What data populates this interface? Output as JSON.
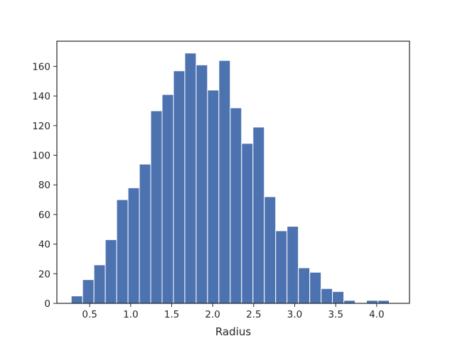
{
  "chart_data": {
    "type": "histogram",
    "title": "",
    "xlabel": "Radius",
    "ylabel": "",
    "xlim": [
      0.1,
      4.4
    ],
    "ylim": [
      0,
      177
    ],
    "bar_color": "#4c72b0",
    "edge_color": "#ffffff",
    "grid": false,
    "legend": "none",
    "bin_width": 0.1385,
    "bin_edges_start": 0.275,
    "bins": [
      {
        "x0": 0.275,
        "x1": 0.4135,
        "count": 5
      },
      {
        "x0": 0.4135,
        "x1": 0.552,
        "count": 16
      },
      {
        "x0": 0.552,
        "x1": 0.6905,
        "count": 26
      },
      {
        "x0": 0.6905,
        "x1": 0.829,
        "count": 43
      },
      {
        "x0": 0.829,
        "x1": 0.9675,
        "count": 70
      },
      {
        "x0": 0.9675,
        "x1": 1.106,
        "count": 78
      },
      {
        "x0": 1.106,
        "x1": 1.2445,
        "count": 94
      },
      {
        "x0": 1.2445,
        "x1": 1.383,
        "count": 130
      },
      {
        "x0": 1.383,
        "x1": 1.5215,
        "count": 141
      },
      {
        "x0": 1.5215,
        "x1": 1.66,
        "count": 157
      },
      {
        "x0": 1.66,
        "x1": 1.7985,
        "count": 169
      },
      {
        "x0": 1.7985,
        "x1": 1.937,
        "count": 161
      },
      {
        "x0": 1.937,
        "x1": 2.0755,
        "count": 144
      },
      {
        "x0": 2.0755,
        "x1": 2.214,
        "count": 164
      },
      {
        "x0": 2.214,
        "x1": 2.3525,
        "count": 132
      },
      {
        "x0": 2.3525,
        "x1": 2.491,
        "count": 108
      },
      {
        "x0": 2.491,
        "x1": 2.6295,
        "count": 119
      },
      {
        "x0": 2.6295,
        "x1": 2.768,
        "count": 72
      },
      {
        "x0": 2.768,
        "x1": 2.9065,
        "count": 49
      },
      {
        "x0": 2.9065,
        "x1": 3.045,
        "count": 52
      },
      {
        "x0": 3.045,
        "x1": 3.1835,
        "count": 24
      },
      {
        "x0": 3.1835,
        "x1": 3.322,
        "count": 21
      },
      {
        "x0": 3.322,
        "x1": 3.4605,
        "count": 10
      },
      {
        "x0": 3.4605,
        "x1": 3.599,
        "count": 8
      },
      {
        "x0": 3.599,
        "x1": 3.7375,
        "count": 2
      },
      {
        "x0": 3.7375,
        "x1": 3.876,
        "count": 0
      },
      {
        "x0": 3.876,
        "x1": 4.0145,
        "count": 2
      },
      {
        "x0": 4.0145,
        "x1": 4.153,
        "count": 2
      }
    ],
    "x_ticks": [
      {
        "value": 0.5,
        "label": "0.5"
      },
      {
        "value": 1.0,
        "label": "1.0"
      },
      {
        "value": 1.5,
        "label": "1.5"
      },
      {
        "value": 2.0,
        "label": "2.0"
      },
      {
        "value": 2.5,
        "label": "2.5"
      },
      {
        "value": 3.0,
        "label": "3.0"
      },
      {
        "value": 3.5,
        "label": "3.5"
      },
      {
        "value": 4.0,
        "label": "4.0"
      }
    ],
    "y_ticks": [
      {
        "value": 0,
        "label": "0"
      },
      {
        "value": 20,
        "label": "20"
      },
      {
        "value": 40,
        "label": "40"
      },
      {
        "value": 60,
        "label": "60"
      },
      {
        "value": 80,
        "label": "80"
      },
      {
        "value": 100,
        "label": "100"
      },
      {
        "value": 120,
        "label": "120"
      },
      {
        "value": 140,
        "label": "140"
      },
      {
        "value": 160,
        "label": "160"
      }
    ]
  }
}
